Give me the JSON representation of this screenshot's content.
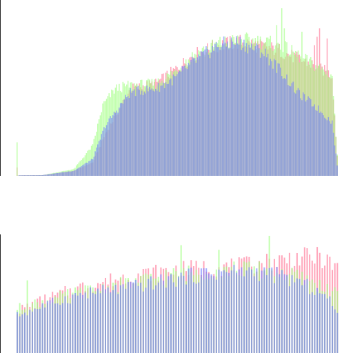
{
  "chart_data": [
    {
      "type": "bar",
      "title": "",
      "xlabel": "",
      "ylabel": "",
      "bins": 256,
      "grid": false,
      "legend": "none",
      "series": [
        {
          "channel": "red",
          "color": "#ff6f91",
          "knots": [
            [
              0,
              0
            ],
            [
              2,
              0.003
            ],
            [
              20,
              0.004
            ],
            [
              45,
              0.03
            ],
            [
              60,
              0.08
            ],
            [
              70,
              0.25
            ],
            [
              90,
              0.52
            ],
            [
              110,
              0.55
            ],
            [
              125,
              0.63
            ],
            [
              140,
              0.72
            ],
            [
              160,
              0.78
            ],
            [
              178,
              0.8
            ],
            [
              195,
              0.77
            ],
            [
              208,
              0.75
            ],
            [
              222,
              0.7
            ],
            [
              236,
              0.66
            ],
            [
              250,
              0.6
            ],
            [
              255,
              0.0
            ]
          ],
          "spikes": [
            [
              0,
              0.05
            ],
            [
              236,
              0.78
            ],
            [
              238,
              0.83
            ],
            [
              240,
              0.88
            ],
            [
              246,
              0.82
            ]
          ]
        },
        {
          "channel": "green",
          "color": "#9cff7c",
          "knots": [
            [
              0,
              0
            ],
            [
              2,
              0.003
            ],
            [
              20,
              0.004
            ],
            [
              45,
              0.04
            ],
            [
              60,
              0.18
            ],
            [
              68,
              0.42
            ],
            [
              78,
              0.52
            ],
            [
              90,
              0.54
            ],
            [
              110,
              0.55
            ],
            [
              125,
              0.62
            ],
            [
              140,
              0.72
            ],
            [
              160,
              0.79
            ],
            [
              180,
              0.81
            ],
            [
              195,
              0.8
            ],
            [
              208,
              0.78
            ],
            [
              222,
              0.72
            ],
            [
              236,
              0.66
            ],
            [
              250,
              0.6
            ],
            [
              255,
              0.0
            ]
          ],
          "spikes": [
            [
              0,
              0.2
            ],
            [
              210,
              1.0
            ],
            [
              226,
              0.86
            ],
            [
              212,
              0.88
            ],
            [
              206,
              0.9
            ]
          ]
        },
        {
          "channel": "blue",
          "color": "#6f7bff",
          "knots": [
            [
              0,
              0
            ],
            [
              2,
              0.003
            ],
            [
              20,
              0.004
            ],
            [
              45,
              0.03
            ],
            [
              60,
              0.1
            ],
            [
              70,
              0.3
            ],
            [
              90,
              0.5
            ],
            [
              110,
              0.52
            ],
            [
              125,
              0.58
            ],
            [
              140,
              0.68
            ],
            [
              160,
              0.78
            ],
            [
              175,
              0.8
            ],
            [
              195,
              0.74
            ],
            [
              210,
              0.62
            ],
            [
              222,
              0.5
            ],
            [
              236,
              0.42
            ],
            [
              250,
              0.32
            ],
            [
              255,
              0.0
            ]
          ],
          "spikes": []
        }
      ]
    },
    {
      "type": "bar",
      "title": "",
      "xlabel": "",
      "ylabel": "",
      "bins": 128,
      "grid": false,
      "legend": "none",
      "series": [
        {
          "channel": "red",
          "color": "#ff6f91",
          "knots": [
            [
              0,
              0.36
            ],
            [
              10,
              0.45
            ],
            [
              25,
              0.56
            ],
            [
              45,
              0.66
            ],
            [
              60,
              0.7
            ],
            [
              75,
              0.73
            ],
            [
              90,
              0.74
            ],
            [
              100,
              0.78
            ],
            [
              110,
              0.81
            ],
            [
              120,
              0.82
            ],
            [
              127,
              0.72
            ]
          ],
          "spikes": []
        },
        {
          "channel": "green",
          "color": "#9cff7c",
          "knots": [
            [
              0,
              0.38
            ],
            [
              10,
              0.44
            ],
            [
              25,
              0.52
            ],
            [
              45,
              0.6
            ],
            [
              60,
              0.66
            ],
            [
              75,
              0.7
            ],
            [
              90,
              0.72
            ],
            [
              100,
              0.7
            ],
            [
              110,
              0.66
            ],
            [
              120,
              0.58
            ],
            [
              127,
              0.5
            ]
          ],
          "spikes": [
            [
              4,
              0.62
            ],
            [
              65,
              0.92
            ],
            [
              80,
              0.88
            ],
            [
              100,
              1.0
            ]
          ]
        },
        {
          "channel": "blue",
          "color": "#6f7bff",
          "knots": [
            [
              0,
              0.32
            ],
            [
              10,
              0.4
            ],
            [
              25,
              0.5
            ],
            [
              45,
              0.56
            ],
            [
              60,
              0.62
            ],
            [
              75,
              0.68
            ],
            [
              90,
              0.7
            ],
            [
              100,
              0.68
            ],
            [
              110,
              0.62
            ],
            [
              120,
              0.52
            ],
            [
              127,
              0.38
            ]
          ],
          "spikes": []
        }
      ]
    }
  ]
}
